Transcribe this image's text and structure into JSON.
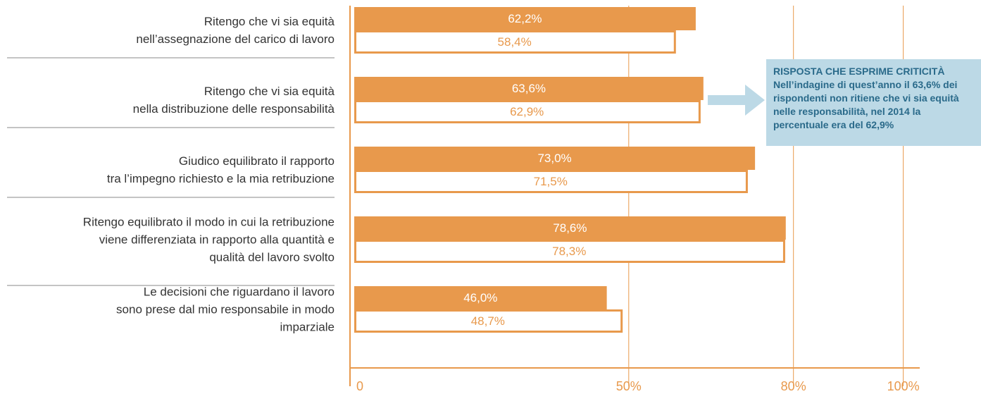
{
  "chart_data": {
    "type": "bar",
    "orientation": "horizontal",
    "categories": [
      "Ritengo che vi sia equità\nnell’assegnazione del carico di lavoro",
      "Ritengo che vi sia equità\nnella distribuzione delle responsabilità",
      "Giudico equilibrato il rapporto\ntra l’impegno richiesto e la mia retribuzione",
      "Ritengo equilibrato il modo in cui la retribuzione\nviene differenziata in rapporto alla quantità e\nqualità del lavoro svolto",
      "Le decisioni che riguardano il lavoro\nsono prese dal mio responsabile in modo\nimparziale"
    ],
    "series": [
      {
        "color": "#e8994c",
        "values": [
          62.2,
          63.6,
          73.0,
          78.6,
          46.0
        ],
        "value_labels": [
          "62,2%",
          "63,6%",
          "73,0%",
          "78,6%",
          "46,0%"
        ]
      },
      {
        "color": "#ffffff",
        "values": [
          58.4,
          62.9,
          71.5,
          78.3,
          48.7
        ],
        "value_labels": [
          "58,4%",
          "62,9%",
          "71,5%",
          "78,3%",
          "48,7%"
        ]
      }
    ],
    "xlim": [
      0,
      103
    ],
    "xticks": [
      0,
      {
        "value": 50,
        "label": "50%"
      },
      {
        "value": 80,
        "label": "80%"
      },
      {
        "value": 100,
        "label": "100%"
      }
    ],
    "grid": true,
    "annotation": {
      "title": "RISPOSTA CHE ESPRIME CRITICITÀ",
      "text": "Nell’indagine di quest’anno il 63,6% dei rispondenti non ritiene che vi sia equità nelle responsabilità, nel 2014 la percentuale era del 62,9%"
    }
  }
}
